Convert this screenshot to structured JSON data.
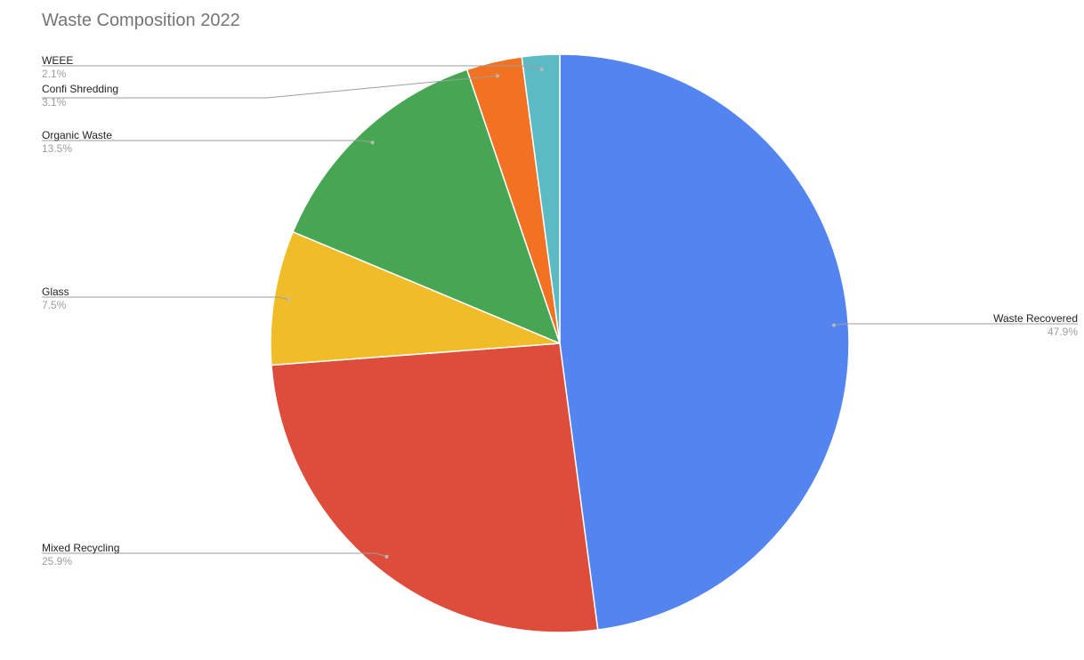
{
  "chart_data": {
    "type": "pie",
    "title": "Waste Composition 2022",
    "slices": [
      {
        "label": "Waste Recovered",
        "value": 47.9,
        "display": "47.9%",
        "color": "#5484ef"
      },
      {
        "label": "Mixed Recycling",
        "value": 25.9,
        "display": "25.9%",
        "color": "#de4c3c"
      },
      {
        "label": "Glass",
        "value": 7.5,
        "display": "7.5%",
        "color": "#f0bc27"
      },
      {
        "label": "Organic Waste",
        "value": 13.5,
        "display": "13.5%",
        "color": "#46a653"
      },
      {
        "label": "Confi Shredding",
        "value": 3.1,
        "display": "3.1%",
        "color": "#f07222"
      },
      {
        "label": "WEEE",
        "value": 2.1,
        "display": "2.1%",
        "color": "#5bbac4"
      }
    ],
    "legend": "none",
    "label_style": "leader-lines"
  }
}
